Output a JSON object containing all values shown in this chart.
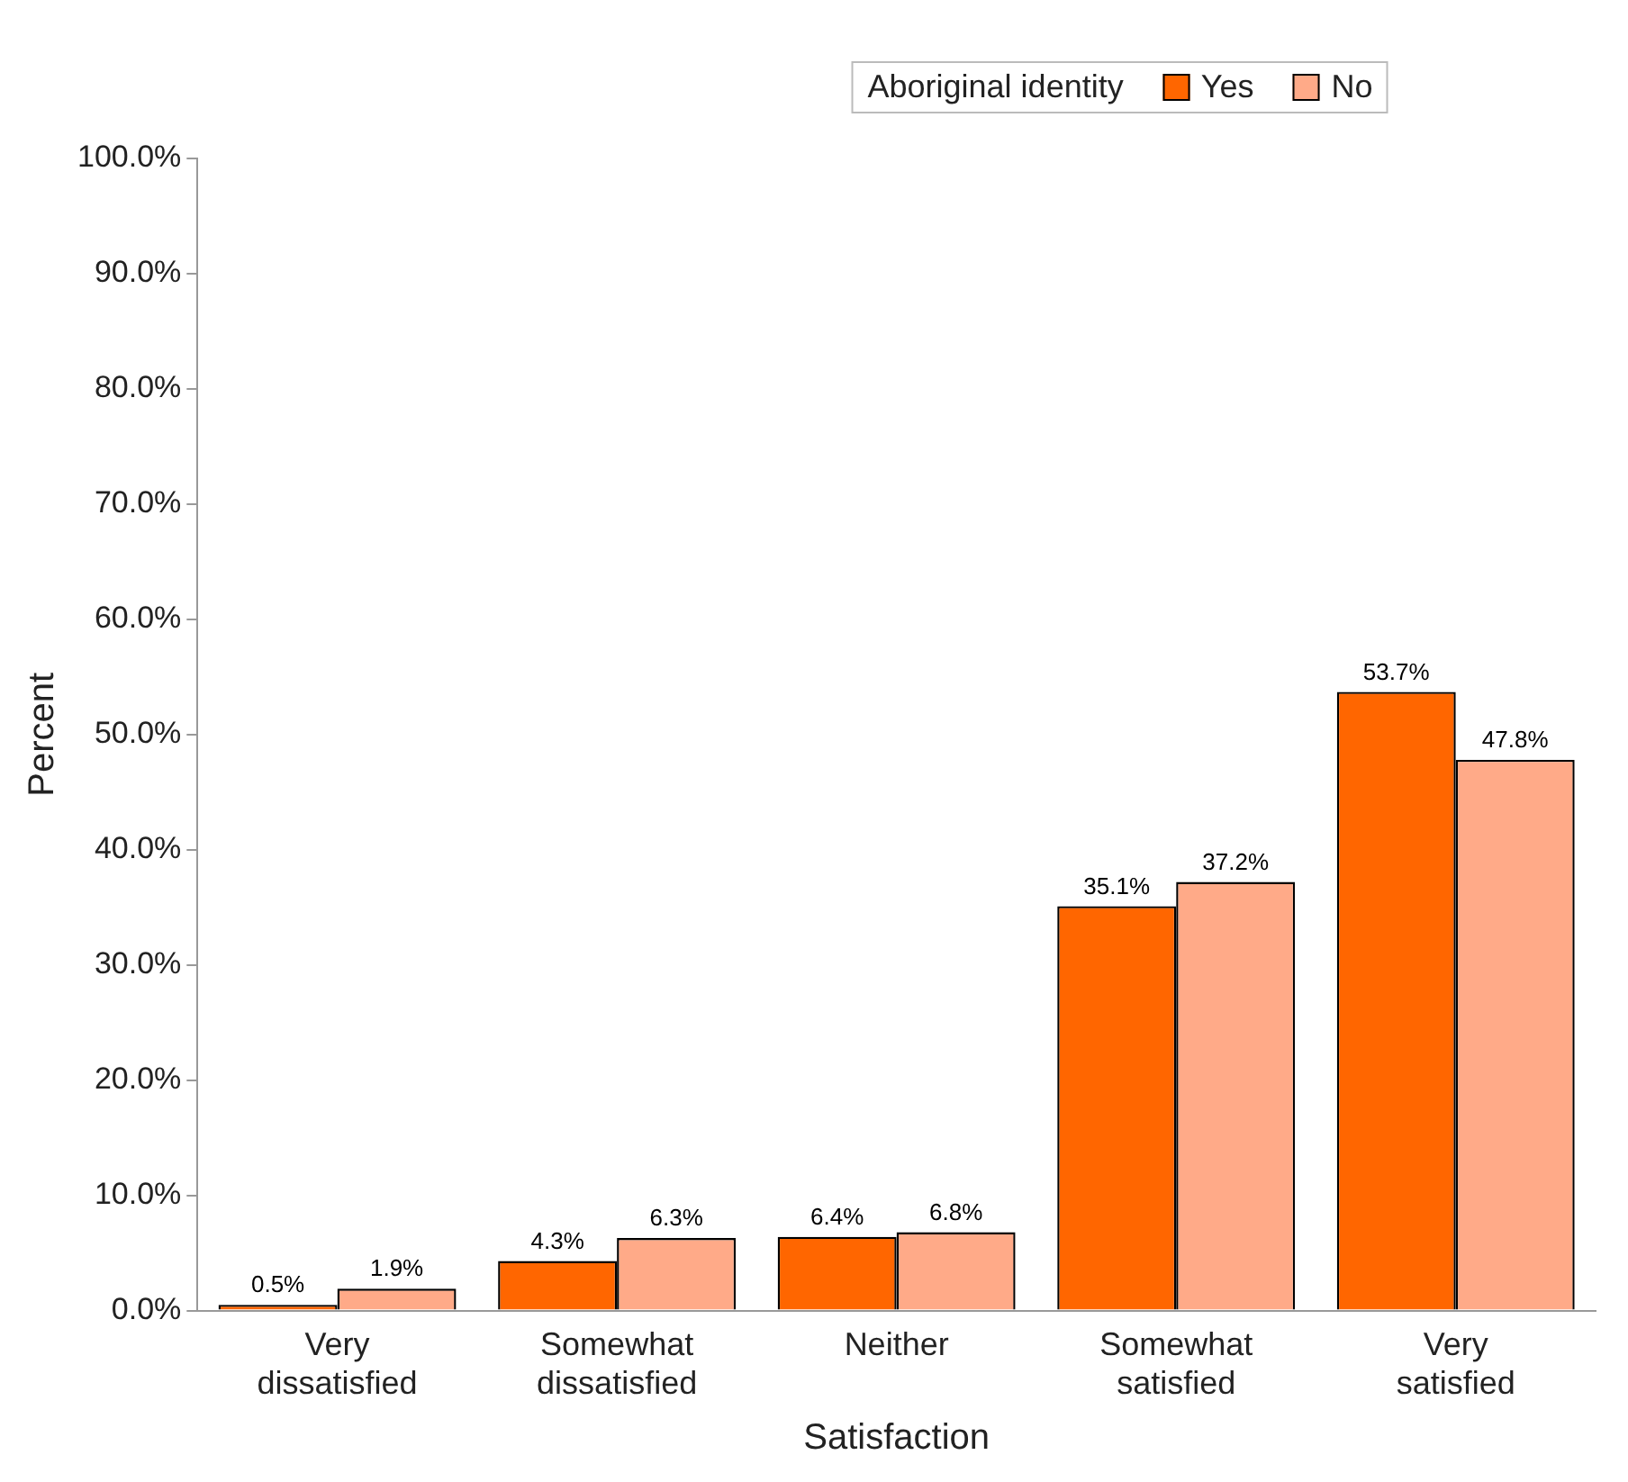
{
  "chart_data": {
    "type": "bar",
    "xlabel": "Satisfaction",
    "ylabel": "Percent",
    "legend_title": "Aboriginal identity",
    "legend": "top",
    "categories": [
      "Very dissatisfied",
      "Somewhat dissatisfied",
      "Neither",
      "Somewhat satisfied",
      "Very satisfied"
    ],
    "series": [
      {
        "name": "Yes",
        "color": "#ff6600",
        "values": [
          0.5,
          4.3,
          6.4,
          35.1,
          53.7
        ],
        "value_labels": [
          "0.5%",
          "4.3%",
          "6.4%",
          "35.1%",
          "53.7%"
        ]
      },
      {
        "name": "No",
        "color": "#ffaa88",
        "values": [
          1.9,
          6.3,
          6.8,
          37.2,
          47.8
        ],
        "value_labels": [
          "1.9%",
          "6.3%",
          "6.8%",
          "37.2%",
          "47.8%"
        ]
      }
    ],
    "ylim": [
      0,
      100
    ],
    "yticks": [
      {
        "value": 0,
        "label": "0.0%"
      },
      {
        "value": 10,
        "label": "10.0%"
      },
      {
        "value": 20,
        "label": "20.0%"
      },
      {
        "value": 30,
        "label": "30.0%"
      },
      {
        "value": 40,
        "label": "40.0%"
      },
      {
        "value": 50,
        "label": "50.0%"
      },
      {
        "value": 60,
        "label": "60.0%"
      },
      {
        "value": 70,
        "label": "70.0%"
      },
      {
        "value": 80,
        "label": "80.0%"
      },
      {
        "value": 90,
        "label": "90.0%"
      },
      {
        "value": 100,
        "label": "100.0%"
      }
    ],
    "grid": false
  }
}
